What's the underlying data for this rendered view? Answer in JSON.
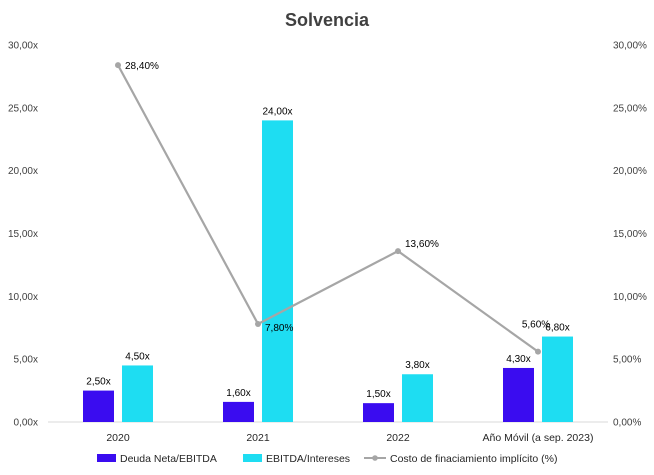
{
  "chart_data": {
    "type": "bar",
    "title": "Solvencia",
    "categories": [
      "2020",
      "2021",
      "2022",
      "Año Móvil (a sep. 2023)"
    ],
    "series": [
      {
        "name": "Deuda Neta/EBITDA",
        "kind": "bar",
        "color": "#3A0CF0",
        "values": [
          2.5,
          1.6,
          1.5,
          4.3
        ],
        "labels": [
          "2,50x",
          "1,60x",
          "1,50x",
          "4,30x"
        ]
      },
      {
        "name": "EBITDA/Intereses",
        "kind": "bar",
        "color": "#1EDDF2",
        "values": [
          4.5,
          24.0,
          3.8,
          6.8
        ],
        "labels": [
          "4,50x",
          "24,00x",
          "3,80x",
          "6,80x"
        ]
      },
      {
        "name": "Costo de finaciamiento implícito (%)",
        "kind": "line",
        "axis": "right",
        "color": "#A6A6A6",
        "values": [
          28.4,
          7.8,
          13.6,
          5.6
        ],
        "labels": [
          "28,40%",
          "7,80%",
          "13,60%",
          "5,60%"
        ]
      }
    ],
    "y_left": {
      "range": [
        0,
        30
      ],
      "ticks": [
        "0,00x",
        "5,00x",
        "10,00x",
        "15,00x",
        "20,00x",
        "25,00x",
        "30,00x"
      ]
    },
    "y_right": {
      "range": [
        0,
        30
      ],
      "ticks": [
        "0,00%",
        "5,00%",
        "10,00%",
        "15,00%",
        "20,00%",
        "25,00%",
        "30,00%"
      ]
    },
    "grid": false,
    "legend": "bottom"
  }
}
